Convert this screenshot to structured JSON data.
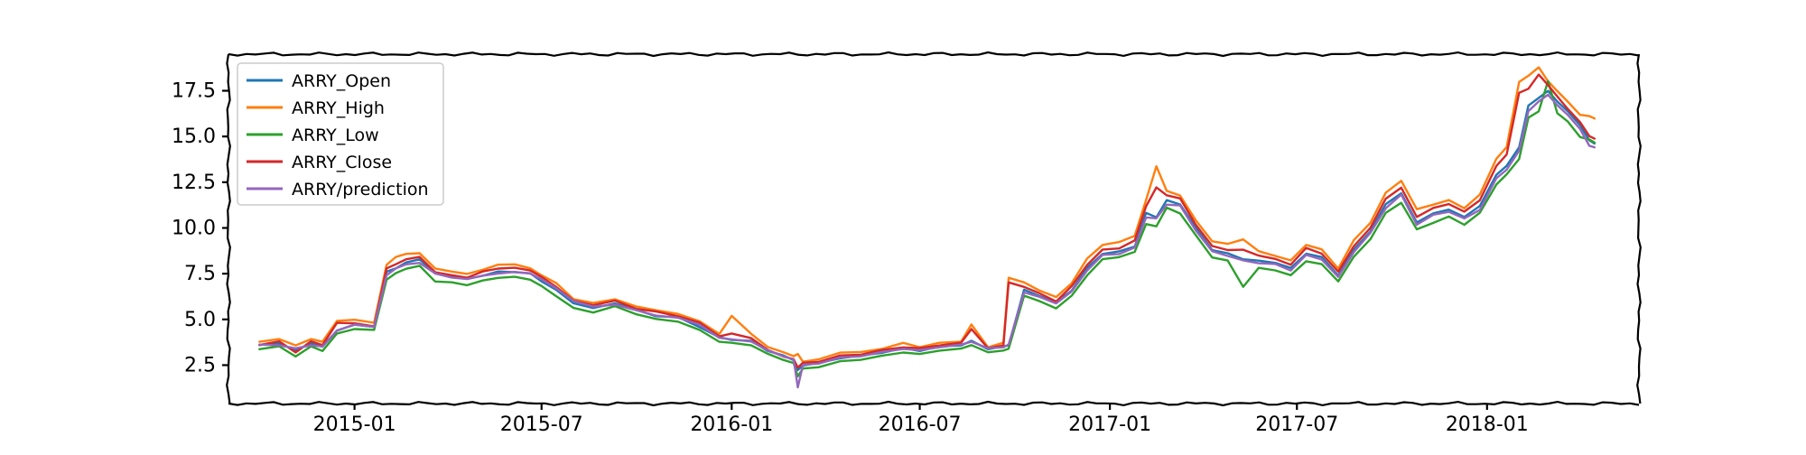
{
  "chart_data": {
    "type": "line",
    "title": "",
    "xlabel": "",
    "ylabel": "",
    "xlim": [
      "2014-09-01",
      "2018-05-28"
    ],
    "ylim": [
      0.4,
      19.5
    ],
    "x_ticks": [
      "2015-01",
      "2015-07",
      "2016-01",
      "2016-07",
      "2017-01",
      "2017-07",
      "2018-01"
    ],
    "x_tick_dates": [
      "2015-01-01",
      "2015-07-01",
      "2016-01-01",
      "2016-07-01",
      "2017-01-01",
      "2017-07-01",
      "2018-01-01"
    ],
    "y_ticks": [
      "2.5",
      "5.0",
      "7.5",
      "10.0",
      "12.5",
      "15.0",
      "17.5"
    ],
    "y_tick_values": [
      2.5,
      5.0,
      7.5,
      10.0,
      12.5,
      15.0,
      17.5
    ],
    "grid": false,
    "legend_position": "top-left",
    "x": [
      "2014-10-01",
      "2014-10-20",
      "2014-11-05",
      "2014-11-20",
      "2014-12-01",
      "2014-12-15",
      "2015-01-01",
      "2015-01-20",
      "2015-02-01",
      "2015-02-10",
      "2015-02-20",
      "2015-03-05",
      "2015-03-20",
      "2015-04-05",
      "2015-04-20",
      "2015-05-05",
      "2015-05-20",
      "2015-06-05",
      "2015-06-20",
      "2015-07-01",
      "2015-07-15",
      "2015-08-01",
      "2015-08-20",
      "2015-09-10",
      "2015-10-01",
      "2015-10-20",
      "2015-11-10",
      "2015-12-01",
      "2015-12-20",
      "2016-01-01",
      "2016-01-20",
      "2016-02-05",
      "2016-02-20",
      "2016-03-01",
      "2016-03-05",
      "2016-03-10",
      "2016-03-25",
      "2016-04-15",
      "2016-05-05",
      "2016-05-25",
      "2016-06-15",
      "2016-07-01",
      "2016-07-20",
      "2016-08-10",
      "2016-08-20",
      "2016-09-05",
      "2016-09-20",
      "2016-09-25",
      "2016-10-10",
      "2016-10-25",
      "2016-11-10",
      "2016-11-25",
      "2016-12-10",
      "2016-12-25",
      "2017-01-10",
      "2017-01-25",
      "2017-02-05",
      "2017-02-15",
      "2017-02-25",
      "2017-03-10",
      "2017-03-25",
      "2017-04-10",
      "2017-04-25",
      "2017-05-10",
      "2017-05-25",
      "2017-06-10",
      "2017-06-25",
      "2017-07-10",
      "2017-07-25",
      "2017-08-10",
      "2017-08-25",
      "2017-09-10",
      "2017-09-25",
      "2017-10-10",
      "2017-10-25",
      "2017-11-10",
      "2017-11-25",
      "2017-12-10",
      "2017-12-25",
      "2018-01-10",
      "2018-01-20",
      "2018-02-01",
      "2018-02-10",
      "2018-02-20",
      "2018-03-01",
      "2018-03-10",
      "2018-03-20",
      "2018-04-01",
      "2018-04-10",
      "2018-04-15"
    ],
    "series": [
      {
        "name": "ARRY_Open",
        "color": "#1f77b4",
        "values": [
          3.6,
          3.7,
          3.3,
          3.7,
          3.5,
          4.4,
          4.7,
          4.6,
          7.6,
          7.8,
          8.1,
          8.3,
          7.5,
          7.4,
          7.2,
          7.4,
          7.6,
          7.6,
          7.5,
          7.1,
          6.6,
          5.9,
          5.6,
          5.9,
          5.5,
          5.2,
          5.1,
          4.6,
          4.0,
          3.9,
          3.8,
          3.3,
          3.0,
          2.8,
          2.2,
          2.5,
          2.6,
          2.9,
          3.0,
          3.2,
          3.4,
          3.3,
          3.5,
          3.6,
          3.8,
          3.4,
          3.5,
          3.6,
          6.6,
          6.3,
          5.9,
          6.6,
          7.8,
          8.6,
          8.7,
          9.0,
          10.8,
          10.6,
          11.5,
          11.3,
          10.0,
          8.8,
          8.6,
          8.3,
          8.2,
          8.1,
          7.8,
          8.6,
          8.4,
          7.4,
          8.8,
          9.8,
          11.3,
          11.9,
          10.3,
          10.8,
          11.0,
          10.6,
          11.2,
          12.9,
          13.4,
          14.4,
          16.7,
          17.1,
          17.5,
          16.9,
          16.4,
          15.6,
          14.8,
          14.6
        ]
      },
      {
        "name": "ARRY_High",
        "color": "#ff7f0e",
        "values": [
          3.8,
          3.9,
          3.6,
          3.9,
          3.8,
          4.9,
          5.0,
          4.8,
          8.0,
          8.4,
          8.6,
          8.6,
          7.8,
          7.6,
          7.5,
          7.7,
          8.0,
          8.0,
          7.8,
          7.4,
          7.0,
          6.1,
          5.9,
          6.1,
          5.7,
          5.5,
          5.3,
          4.9,
          4.2,
          5.2,
          4.2,
          3.5,
          3.2,
          3.0,
          3.1,
          2.7,
          2.8,
          3.2,
          3.2,
          3.4,
          3.7,
          3.5,
          3.7,
          3.8,
          4.7,
          3.5,
          3.7,
          7.3,
          7.0,
          6.6,
          6.2,
          7.0,
          8.3,
          9.1,
          9.2,
          9.6,
          11.5,
          13.4,
          12.0,
          11.8,
          10.4,
          9.3,
          9.1,
          9.4,
          8.7,
          8.5,
          8.2,
          9.1,
          8.8,
          7.8,
          9.3,
          10.3,
          11.9,
          12.6,
          11.0,
          11.3,
          11.5,
          11.1,
          11.8,
          13.8,
          14.4,
          18.0,
          18.3,
          18.8,
          18.0,
          17.5,
          16.9,
          16.2,
          16.1,
          16.0
        ]
      },
      {
        "name": "ARRY_Low",
        "color": "#2ca02c",
        "values": [
          3.4,
          3.5,
          3.0,
          3.5,
          3.3,
          4.2,
          4.5,
          4.4,
          7.2,
          7.5,
          7.8,
          7.9,
          7.1,
          7.0,
          6.9,
          7.1,
          7.3,
          7.3,
          7.2,
          6.8,
          6.3,
          5.6,
          5.4,
          5.7,
          5.3,
          5.0,
          4.9,
          4.4,
          3.8,
          3.7,
          3.6,
          3.1,
          2.8,
          2.6,
          1.9,
          2.3,
          2.4,
          2.7,
          2.8,
          3.0,
          3.2,
          3.1,
          3.3,
          3.4,
          3.6,
          3.2,
          3.3,
          3.4,
          6.3,
          6.0,
          5.6,
          6.3,
          7.4,
          8.3,
          8.4,
          8.7,
          10.2,
          10.1,
          11.1,
          10.8,
          9.6,
          8.4,
          8.2,
          6.8,
          7.8,
          7.7,
          7.4,
          8.2,
          8.0,
          7.1,
          8.4,
          9.4,
          10.8,
          11.4,
          9.9,
          10.3,
          10.6,
          10.2,
          10.8,
          12.4,
          12.9,
          13.8,
          16.0,
          16.4,
          18.0,
          16.3,
          15.8,
          15.0,
          14.8,
          14.7
        ]
      },
      {
        "name": "ARRY_Close",
        "color": "#d62728",
        "values": [
          3.6,
          3.8,
          3.2,
          3.8,
          3.6,
          4.8,
          4.8,
          4.6,
          7.8,
          8.0,
          8.3,
          8.4,
          7.6,
          7.4,
          7.3,
          7.6,
          7.8,
          7.8,
          7.7,
          7.3,
          6.8,
          6.0,
          5.8,
          6.0,
          5.6,
          5.4,
          5.2,
          4.8,
          4.1,
          4.2,
          4.0,
          3.3,
          3.0,
          2.8,
          2.4,
          2.6,
          2.7,
          3.0,
          3.1,
          3.3,
          3.5,
          3.4,
          3.6,
          3.7,
          4.5,
          3.4,
          3.6,
          7.0,
          6.8,
          6.4,
          6.0,
          6.8,
          8.0,
          8.8,
          8.9,
          9.3,
          11.2,
          12.2,
          11.8,
          11.6,
          10.2,
          9.0,
          8.8,
          8.8,
          8.5,
          8.3,
          8.0,
          8.9,
          8.6,
          7.6,
          9.0,
          10.0,
          11.6,
          12.2,
          10.6,
          11.1,
          11.3,
          10.9,
          11.5,
          13.4,
          14.0,
          17.4,
          17.6,
          18.4,
          17.8,
          17.2,
          16.5,
          15.8,
          15.0,
          14.9
        ]
      },
      {
        "name": "ARRY/prediction",
        "color": "#9467bd",
        "values": [
          3.6,
          3.6,
          3.4,
          3.6,
          3.5,
          4.4,
          4.7,
          4.6,
          7.4,
          7.8,
          8.0,
          8.1,
          7.5,
          7.3,
          7.2,
          7.4,
          7.5,
          7.6,
          7.5,
          7.2,
          6.7,
          6.0,
          5.7,
          5.8,
          5.5,
          5.2,
          5.1,
          4.7,
          4.0,
          3.9,
          3.8,
          3.3,
          3.0,
          2.8,
          1.3,
          2.5,
          2.6,
          2.9,
          3.0,
          3.2,
          3.4,
          3.3,
          3.5,
          3.6,
          3.8,
          3.4,
          3.5,
          3.6,
          6.5,
          6.2,
          5.9,
          6.5,
          7.7,
          8.5,
          8.6,
          8.9,
          10.6,
          10.5,
          11.3,
          11.2,
          9.9,
          8.7,
          8.5,
          8.2,
          8.1,
          8.0,
          7.7,
          8.5,
          8.3,
          7.3,
          8.7,
          9.7,
          11.1,
          11.8,
          10.2,
          10.7,
          10.9,
          10.5,
          11.0,
          12.7,
          13.2,
          14.2,
          16.4,
          16.9,
          17.3,
          16.7,
          16.2,
          15.4,
          14.5,
          14.4
        ]
      }
    ]
  }
}
